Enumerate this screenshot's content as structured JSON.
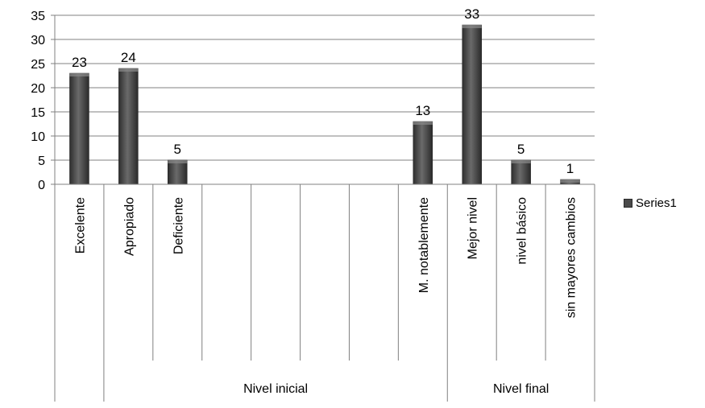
{
  "chart_data": {
    "type": "bar",
    "categories": [
      "Excelente",
      "Apropiado",
      "Deficiente",
      "",
      "",
      "",
      "",
      "M. notablemente",
      "Mejor nivel",
      "nivel básico",
      "sin mayores cambios"
    ],
    "groups": [
      {
        "label": "",
        "start": 0,
        "end": 0
      },
      {
        "label": "Nivel inicial",
        "start": 1,
        "end": 7
      },
      {
        "label": "Nivel final",
        "start": 8,
        "end": 10
      }
    ],
    "series": [
      {
        "name": "Series1",
        "values": [
          23,
          24,
          5,
          null,
          null,
          null,
          null,
          13,
          33,
          5,
          1
        ]
      }
    ],
    "data_labels": [
      "23",
      "24",
      "5",
      "",
      "",
      "",
      "",
      "13",
      "33",
      "5",
      "1"
    ],
    "yticks": [
      "0",
      "5",
      "10",
      "15",
      "20",
      "25",
      "30",
      "35"
    ],
    "ylim": [
      0,
      35
    ],
    "grid": true,
    "legend_position": "right",
    "bar_color": "#4a4a4a"
  }
}
